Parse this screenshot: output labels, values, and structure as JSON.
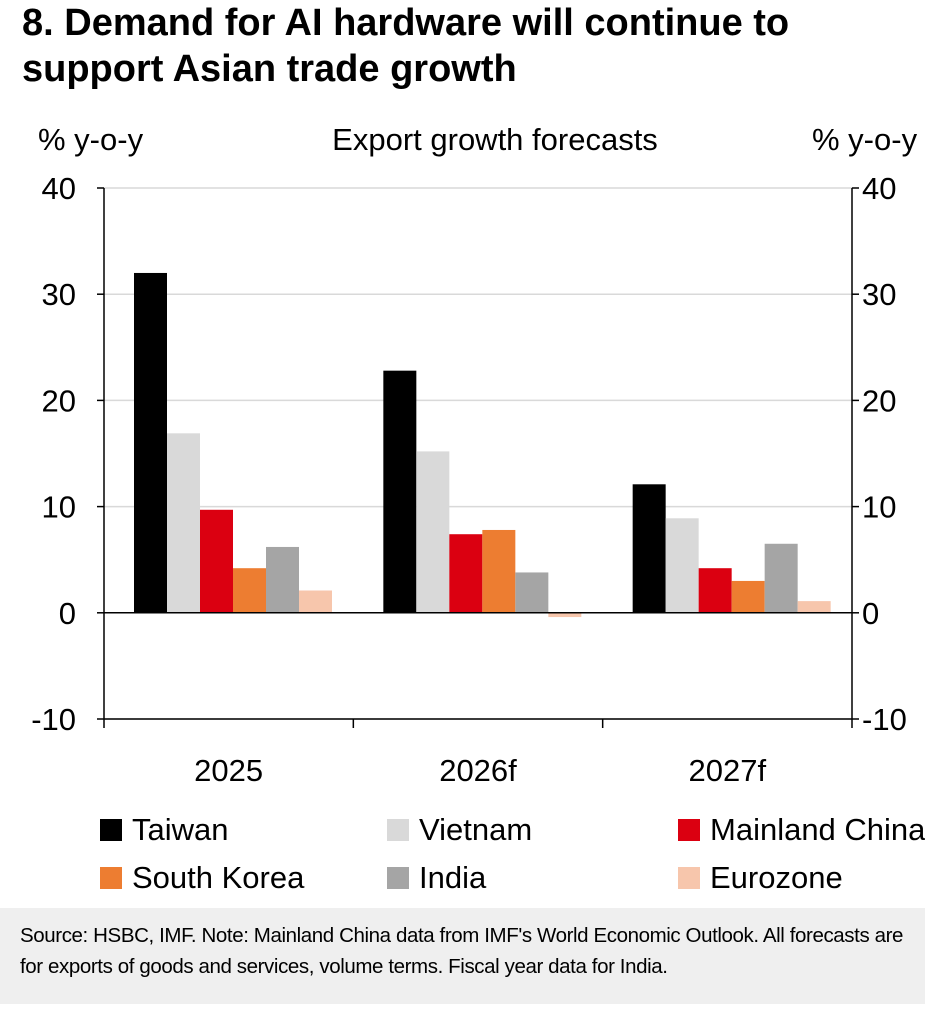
{
  "headline": "8. Demand for AI hardware will continue to support Asian trade growth",
  "chart_data": {
    "type": "bar",
    "title": "Export growth forecasts",
    "ylabel_left": "% y-o-y",
    "ylabel_right": "% y-o-y",
    "ylim": [
      -10,
      40
    ],
    "yticks": [
      -10,
      0,
      10,
      20,
      30,
      40
    ],
    "ytick_labels_left": [
      "-10",
      "0",
      "10",
      "20",
      "30",
      "40"
    ],
    "ytick_labels_right": [
      "-10",
      "0",
      "10",
      "20",
      "30",
      "40"
    ],
    "grid": true,
    "legend_position": "bottom",
    "categories": [
      "2025",
      "2026f",
      "2027f"
    ],
    "series": [
      {
        "name": "Taiwan",
        "color": "#000000",
        "values": [
          32.0,
          22.8,
          12.1
        ]
      },
      {
        "name": "Vietnam",
        "color": "#d9d9d9",
        "values": [
          16.9,
          15.2,
          8.9
        ]
      },
      {
        "name": "Mainland China",
        "color": "#db0011",
        "values": [
          9.7,
          7.4,
          4.2
        ]
      },
      {
        "name": "South Korea",
        "color": "#ed7d31",
        "values": [
          4.2,
          7.8,
          3.0
        ]
      },
      {
        "name": "India",
        "color": "#a5a5a5",
        "values": [
          6.2,
          3.8,
          6.5
        ]
      },
      {
        "name": "Eurozone",
        "color": "#f7c6ac",
        "values": [
          2.1,
          -0.4,
          1.1
        ]
      }
    ]
  },
  "legend": [
    {
      "label": "Taiwan",
      "color": "#000000"
    },
    {
      "label": "Vietnam",
      "color": "#d9d9d9"
    },
    {
      "label": "Mainland China",
      "color": "#db0011"
    },
    {
      "label": "South Korea",
      "color": "#ed7d31"
    },
    {
      "label": "India",
      "color": "#a5a5a5"
    },
    {
      "label": "Eurozone",
      "color": "#f7c6ac"
    }
  ],
  "source_note": "Source: HSBC, IMF. Note: Mainland China data from IMF's World Economic Outlook. All forecasts are for exports of goods and services, volume terms. Fiscal year data for India."
}
